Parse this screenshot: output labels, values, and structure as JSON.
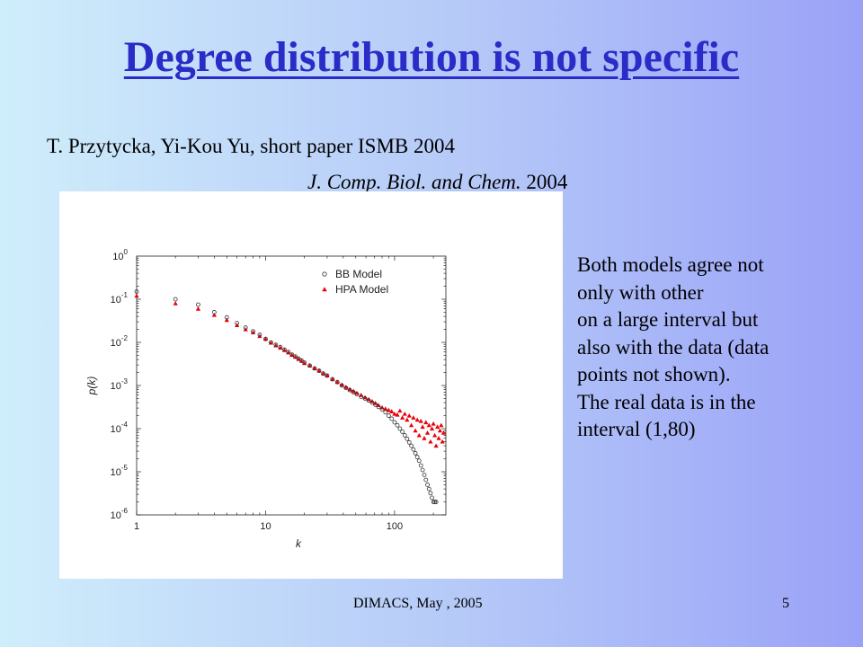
{
  "slide": {
    "title": "Degree distribution is not specific",
    "authors": "T. Przytycka, Yi-Kou Yu, short paper ISMB 2004",
    "journal_italic": "J. Comp. Biol. and Chem.",
    "journal_year": "2004",
    "note_lines": [
      "Both models agree  not",
      "only with other",
      "on a large interval but",
      "also with the data (data",
      "points not shown).",
      "The real data is in the",
      "interval (1,80)"
    ],
    "footer": "DIMACS, May , 2005",
    "page_number": "5"
  },
  "colors": {
    "title": "#2b2bc8",
    "bb_series": "#333333",
    "hpa_series": "#e8000b"
  },
  "chart_data": {
    "type": "scatter",
    "xscale": "log",
    "yscale": "log",
    "xlim": [
      1,
      250
    ],
    "ylim": [
      1e-06,
      1
    ],
    "xlabel": "k",
    "ylabel": "p(k)",
    "xticks": [
      {
        "value": 1,
        "label": "1"
      },
      {
        "value": 10,
        "label": "10"
      },
      {
        "value": 100,
        "label": "100"
      }
    ],
    "yticks": [
      {
        "value": 1,
        "mantissa": "10",
        "exp": "0"
      },
      {
        "value": 0.1,
        "mantissa": "10",
        "exp": "-1"
      },
      {
        "value": 0.01,
        "mantissa": "10",
        "exp": "-2"
      },
      {
        "value": 0.001,
        "mantissa": "10",
        "exp": "-3"
      },
      {
        "value": 0.0001,
        "mantissa": "10",
        "exp": "-4"
      },
      {
        "value": 1e-05,
        "mantissa": "10",
        "exp": "-5"
      },
      {
        "value": 1e-06,
        "mantissa": "10",
        "exp": "-6"
      }
    ],
    "legend_position": "top-right",
    "series": [
      {
        "name": "BB Model",
        "marker": "open-circle",
        "x": [
          1,
          2,
          3,
          4,
          5,
          6,
          7,
          8,
          9,
          10,
          11,
          12,
          13,
          14,
          15,
          16,
          17,
          18,
          19,
          20,
          22,
          24,
          26,
          28,
          30,
          33,
          36,
          39,
          42,
          45,
          48,
          51,
          55,
          59,
          63,
          67,
          71,
          75,
          80,
          85,
          90,
          95,
          100,
          105,
          110,
          115,
          120,
          125,
          130,
          135,
          140,
          145,
          150,
          155,
          160,
          165,
          170,
          175,
          180,
          185,
          190,
          195,
          200,
          205,
          210
        ],
        "y": [
          0.15,
          0.1,
          0.075,
          0.05,
          0.038,
          0.028,
          0.022,
          0.018,
          0.015,
          0.012,
          0.01,
          0.0088,
          0.0078,
          0.0068,
          0.006,
          0.0052,
          0.0047,
          0.0042,
          0.0038,
          0.0034,
          0.0029,
          0.0025,
          0.0022,
          0.0019,
          0.0017,
          0.0014,
          0.0012,
          0.001,
          0.00088,
          0.00078,
          0.0007,
          0.00063,
          0.00055,
          0.0005,
          0.00045,
          0.0004,
          0.00036,
          0.00032,
          0.00028,
          0.00024,
          0.0002,
          0.00017,
          0.00014,
          0.00012,
          0.0001,
          8.5e-05,
          7e-05,
          5.8e-05,
          4.8e-05,
          4e-05,
          3.3e-05,
          2.7e-05,
          2.2e-05,
          1.8e-05,
          1.4e-05,
          1.1e-05,
          8.5e-06,
          6.5e-06,
          5e-06,
          4e-06,
          3.2e-06,
          2.5e-06,
          2e-06,
          2e-06,
          2e-06
        ]
      },
      {
        "name": "HPA Model",
        "marker": "filled-triangle",
        "x": [
          1,
          2,
          3,
          4,
          5,
          6,
          7,
          8,
          9,
          10,
          11,
          12,
          13,
          14,
          15,
          16,
          17,
          18,
          19,
          20,
          22,
          24,
          26,
          28,
          30,
          33,
          36,
          39,
          42,
          45,
          48,
          51,
          55,
          59,
          63,
          67,
          71,
          75,
          80,
          85,
          90,
          95,
          100,
          105,
          110,
          115,
          120,
          125,
          130,
          135,
          140,
          145,
          150,
          155,
          160,
          165,
          170,
          175,
          180,
          185,
          190,
          195,
          200,
          205,
          210,
          215,
          220,
          225,
          230,
          235,
          240
        ],
        "y": [
          0.12,
          0.08,
          0.06,
          0.043,
          0.033,
          0.025,
          0.02,
          0.017,
          0.014,
          0.012,
          0.0098,
          0.0085,
          0.0075,
          0.0066,
          0.0058,
          0.0051,
          0.0046,
          0.0041,
          0.0037,
          0.0033,
          0.0029,
          0.0025,
          0.0022,
          0.0019,
          0.0017,
          0.0014,
          0.0012,
          0.00105,
          0.00092,
          0.00082,
          0.00074,
          0.00067,
          0.0006,
          0.00053,
          0.00048,
          0.00043,
          0.00039,
          0.00035,
          0.00031,
          0.00029,
          0.00027,
          0.00025,
          0.00022,
          0.00021,
          0.00026,
          0.00018,
          0.00022,
          0.00016,
          0.0002,
          0.00012,
          0.00018,
          9e-05,
          0.00016,
          7e-05,
          0.00015,
          0.00011,
          6e-05,
          0.00014,
          8e-05,
          0.00012,
          5e-05,
          0.0001,
          0.00013,
          7e-05,
          4e-05,
          0.00011,
          6e-05,
          9e-05,
          0.00012,
          5e-05,
          8e-05
        ]
      }
    ]
  }
}
